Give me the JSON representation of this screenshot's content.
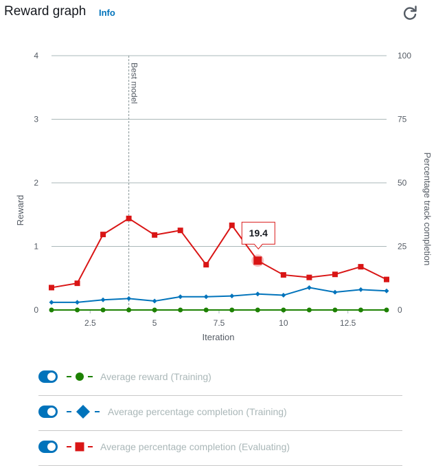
{
  "header": {
    "title": "Reward graph",
    "info_label": "Info",
    "refresh_icon": "refresh-icon"
  },
  "colors": {
    "reward": "#1d8102",
    "training": "#0073bb",
    "evaluating": "#d91515",
    "toggle": "#0073bb",
    "legend_text": "#aab7b8"
  },
  "chart_data": {
    "type": "line",
    "xlabel": "Iteration",
    "ylabel": "Reward",
    "y2label": "Percentage track completion",
    "xlim": [
      1,
      14
    ],
    "ylim": [
      0,
      4
    ],
    "y2lim": [
      0,
      100
    ],
    "x_ticks": [
      2.5,
      5,
      7.5,
      10,
      12.5
    ],
    "x_tick_labels": [
      "2.5",
      "5",
      "7.5",
      "10",
      "12.5"
    ],
    "y_ticks": [
      0,
      1,
      2,
      3,
      4
    ],
    "y_tick_labels": [
      "0",
      "1",
      "2",
      "3",
      "4"
    ],
    "y2_ticks": [
      0,
      25,
      50,
      75,
      100
    ],
    "y2_tick_labels": [
      "0",
      "25",
      "50",
      "75",
      "100"
    ],
    "grid": true,
    "annotation": {
      "label": "Best model",
      "x": 4
    },
    "tooltip": {
      "text": "19.4",
      "series": 2,
      "x": 9
    },
    "series": [
      {
        "name": "Average reward (Training)",
        "axis": "left",
        "marker": "circle",
        "x": [
          1,
          2,
          3,
          4,
          5,
          6,
          7,
          8,
          9,
          10,
          11,
          12,
          13,
          14
        ],
        "values": [
          0,
          0,
          0,
          0,
          0,
          0,
          0,
          0,
          0,
          0,
          0,
          0,
          0,
          0
        ]
      },
      {
        "name": "Average percentage completion (Training)",
        "axis": "right",
        "marker": "diamond",
        "x": [
          1,
          2,
          3,
          4,
          5,
          6,
          7,
          8,
          9,
          10,
          11,
          12,
          13,
          14
        ],
        "values": [
          3,
          3,
          4,
          4.5,
          3.5,
          5.2,
          5.2,
          5.5,
          6.3,
          5.8,
          8.8,
          7,
          8,
          7.5
        ]
      },
      {
        "name": "Average percentage completion (Evaluating)",
        "axis": "right",
        "marker": "square",
        "x": [
          1,
          2,
          3,
          4,
          5,
          6,
          7,
          8,
          9,
          10,
          11,
          12,
          13,
          14
        ],
        "values": [
          8.8,
          10.5,
          29.7,
          36,
          29.5,
          31.3,
          17.8,
          33.3,
          19.4,
          13.8,
          12.8,
          14,
          17,
          12
        ]
      }
    ]
  }
}
